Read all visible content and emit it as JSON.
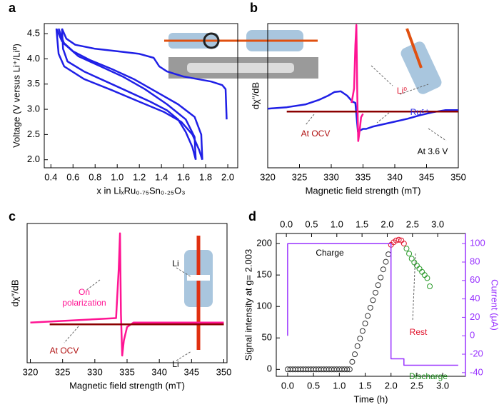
{
  "chart_data": [
    {
      "type": "line",
      "label": "a",
      "x_label": "x in LiₓRu₀.₇₅Sn₀.₂₅O₃",
      "y_label": "Voltage (V versus Li⁺/Li⁰)",
      "xlim": [
        0.34,
        2.09
      ],
      "ylim": [
        1.84,
        4.7
      ],
      "xticks": [
        0.4,
        0.6,
        0.8,
        {
          "value": 1,
          "label": "1.0"
        },
        1.2,
        1.4,
        1.6,
        1.8,
        {
          "value": 2,
          "label": "2.0"
        }
      ],
      "yticks": [
        {
          "value": 2,
          "label": "2.0"
        },
        2.5,
        {
          "value": 3,
          "label": "3.0"
        },
        3.5,
        {
          "value": 4,
          "label": "4.0"
        },
        4.5
      ],
      "series": [
        {
          "color": "#1f1fe6",
          "x": [
            1.99,
            1.98,
            1.95,
            1.85,
            1.6,
            1.45,
            1.38,
            1.33,
            1.2,
            1.0,
            0.8,
            0.62,
            0.54,
            0.5
          ],
          "values": [
            2.8,
            3.4,
            3.48,
            3.55,
            3.65,
            3.75,
            3.85,
            4.02,
            4.1,
            4.15,
            4.2,
            4.28,
            4.4,
            4.6
          ]
        },
        {
          "color": "#1f1fe6",
          "x": [
            0.5,
            0.51,
            0.55,
            0.7,
            0.9,
            1.1,
            1.3,
            1.45,
            1.55,
            1.62,
            1.68,
            1.71
          ],
          "values": [
            4.6,
            4.2,
            3.95,
            3.75,
            3.55,
            3.35,
            3.15,
            2.98,
            2.8,
            2.55,
            2.25,
            2.0
          ]
        },
        {
          "color": "#1f1fe6",
          "x": [
            1.77,
            1.76,
            1.7,
            1.55,
            1.35,
            1.15,
            0.95,
            0.75,
            0.6,
            0.5,
            0.45
          ],
          "values": [
            2.0,
            2.5,
            2.85,
            3.1,
            3.35,
            3.6,
            3.8,
            3.98,
            4.15,
            4.35,
            4.6
          ]
        },
        {
          "color": "#1f1fe6",
          "x": [
            0.45,
            0.47,
            0.52,
            0.7,
            0.95,
            1.2,
            1.42,
            1.58,
            1.68,
            1.74,
            1.77
          ],
          "values": [
            4.6,
            4.1,
            3.85,
            3.6,
            3.38,
            3.15,
            2.95,
            2.75,
            2.5,
            2.2,
            2.0
          ]
        },
        {
          "color": "#1f1fe6",
          "x": [
            1.71,
            1.7,
            1.62,
            1.45,
            1.25,
            1.05,
            0.85,
            0.65,
            0.52,
            0.47
          ],
          "values": [
            2.0,
            2.45,
            2.8,
            3.1,
            3.4,
            3.65,
            3.85,
            4.05,
            4.3,
            4.6
          ]
        }
      ]
    },
    {
      "type": "line",
      "label": "b",
      "x_label": "Magnetic field strength (mT)",
      "y_label": "dχ″/dB",
      "xlim": [
        320,
        350
      ],
      "ylim": [
        -0.8,
        1.2
      ],
      "xticks": [
        320,
        325,
        330,
        335,
        340,
        345,
        350
      ],
      "annotations": [
        {
          "text": "Li⁰",
          "color": "#e0102a"
        },
        {
          "text": "Ru⁵⁺",
          "color": "#1f1fe6"
        },
        {
          "text": "At OCV",
          "color": "#b01010"
        },
        {
          "text": "At 3.6 V",
          "color": "#000000"
        }
      ],
      "series": [
        {
          "color": "#1f1fe6",
          "x": [
            320,
            323,
            326,
            328,
            329.5,
            330.5,
            331.5,
            332.5,
            333.3,
            333.8,
            334.2,
            334.6,
            335,
            335.5,
            336.5,
            338,
            340,
            342,
            344,
            346,
            348,
            350
          ],
          "values": [
            0.02,
            0.04,
            0.08,
            0.14,
            0.2,
            0.25,
            0.26,
            0.2,
            0.12,
            0.1,
            -0.3,
            -0.28,
            -0.26,
            -0.26,
            -0.23,
            -0.2,
            -0.16,
            -0.12,
            -0.07,
            -0.03,
            0.0,
            0.0
          ]
        },
        {
          "color": "#8b0000",
          "x": [
            323,
            350
          ],
          "values": [
            -0.02,
            -0.02
          ]
        },
        {
          "color": "#ff1493",
          "x": [
            333.2,
            333.6,
            333.8,
            333.95,
            334.1,
            334.25,
            334.45,
            334.7,
            335
          ],
          "values": [
            0.1,
            0.3,
            0.9,
            1.18,
            0.2,
            -0.43,
            -0.3,
            -0.1,
            -0.05
          ]
        }
      ]
    },
    {
      "type": "line",
      "label": "c",
      "x_label": "Magnetic field strength (mT)",
      "y_label": "dχ″/dB",
      "xlim": [
        319.5,
        350.5
      ],
      "ylim": [
        -0.45,
        1.11
      ],
      "xticks": [
        320,
        325,
        330,
        335,
        340,
        345,
        350
      ],
      "annotations": [
        {
          "text": "On polarization",
          "color": "#ff1493"
        },
        {
          "text": "At OCV",
          "color": "#b01010"
        },
        {
          "text": "Li",
          "color": "#000000"
        },
        {
          "text": "Li",
          "color": "#000000"
        }
      ],
      "series": [
        {
          "color": "#ff1493",
          "x": [
            320,
            333.3,
            333.7,
            333.9,
            334.05,
            334.25,
            334.5,
            335,
            336,
            350
          ],
          "values": [
            0,
            0.05,
            0.6,
            1.0,
            0.1,
            -0.37,
            -0.2,
            -0.05,
            0,
            0
          ]
        },
        {
          "color": "#8b0000",
          "x": [
            323,
            350
          ],
          "values": [
            -0.02,
            -0.02
          ]
        }
      ]
    },
    {
      "type": "scatter",
      "label": "d",
      "x_label": "Time (h)",
      "y_label": "Signal intensity at g= 2.003",
      "y2_label": "Current (μA)",
      "xlim": [
        -0.22,
        3.44
      ],
      "ylim": [
        -11,
        216
      ],
      "y2lim": [
        -44,
        111
      ],
      "x2lim": [
        -0.2,
        3.55
      ],
      "xticks": [
        {
          "value": 0,
          "label": "0.0"
        },
        0.5,
        {
          "value": 1,
          "label": "1.0"
        },
        1.5,
        {
          "value": 2,
          "label": "2.0"
        },
        2.5,
        {
          "value": 3,
          "label": "3.0"
        }
      ],
      "x2ticks": [
        {
          "value": 0,
          "label": "0.0"
        },
        0.5,
        {
          "value": 1,
          "label": "1.0"
        },
        1.5,
        {
          "value": 2,
          "label": "2.0"
        },
        2.5,
        {
          "value": 3,
          "label": "3.0"
        }
      ],
      "yticks": [
        0,
        50,
        100,
        150,
        200
      ],
      "y2ticks": [
        -40,
        -20,
        0,
        20,
        40,
        60,
        80,
        100
      ],
      "y2color": "#9933ff",
      "annotations": [
        {
          "text": "Charge",
          "color": "#000000"
        },
        {
          "text": "Rest",
          "color": "#e0102a"
        },
        {
          "text": "Discharge",
          "color": "#1a8a1a"
        }
      ],
      "series": [
        {
          "color": "#333333",
          "marker": "circle",
          "x": [
            0,
            0.05,
            0.1,
            0.15,
            0.2,
            0.25,
            0.3,
            0.35,
            0.4,
            0.45,
            0.5,
            0.55,
            0.6,
            0.65,
            0.7,
            0.75,
            0.8,
            0.85,
            0.9,
            0.95,
            1.0,
            1.05,
            1.1,
            1.15,
            1.2,
            1.25,
            1.3,
            1.35,
            1.4,
            1.45,
            1.5,
            1.55,
            1.6,
            1.65,
            1.7,
            1.75,
            1.8,
            1.85,
            1.9,
            1.95
          ],
          "values": [
            0,
            0,
            0,
            0,
            0,
            0,
            0,
            0,
            0,
            0,
            0,
            0,
            0,
            0,
            0,
            0,
            0,
            0,
            0,
            0,
            0,
            0,
            0,
            0,
            0,
            12,
            24,
            37,
            49,
            61,
            73,
            85,
            98,
            110,
            122,
            134,
            146,
            159,
            171,
            183
          ]
        },
        {
          "color": "#e0102a",
          "marker": "circle",
          "x": [
            2.0,
            2.05,
            2.1,
            2.15,
            2.2,
            2.25
          ],
          "values": [
            198,
            202,
            205,
            206,
            205,
            200
          ]
        },
        {
          "color": "#2a9a2a",
          "marker": "circle",
          "x": [
            2.3,
            2.35,
            2.4,
            2.45,
            2.5,
            2.55,
            2.6,
            2.65,
            2.7,
            2.75
          ],
          "values": [
            192,
            184,
            176,
            170,
            165,
            160,
            155,
            150,
            145,
            132
          ]
        },
        {
          "color": "#9933ff",
          "marker": "line",
          "axis": "y2",
          "x": [
            0,
            0,
            2.0,
            2.0,
            2.25,
            2.25,
            3.3
          ],
          "values": [
            0,
            100,
            100,
            -25,
            -25,
            -32,
            -32
          ]
        }
      ]
    }
  ]
}
